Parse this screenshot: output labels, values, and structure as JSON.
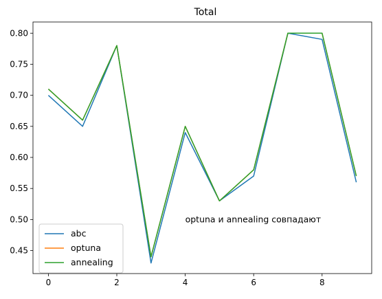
{
  "chart_data": {
    "type": "line",
    "title": "Total",
    "xlabel": "",
    "ylabel": "",
    "x": [
      0,
      1,
      2,
      3,
      4,
      5,
      6,
      7,
      8,
      9
    ],
    "xlim": [
      -0.45,
      9.45
    ],
    "ylim": [
      0.413,
      0.818
    ],
    "xticks": [
      0,
      2,
      4,
      6,
      8
    ],
    "xtick_labels": [
      "0",
      "2",
      "4",
      "6",
      "8"
    ],
    "yticks": [
      0.45,
      0.5,
      0.55,
      0.6,
      0.65,
      0.7,
      0.75,
      0.8
    ],
    "ytick_labels": [
      "0.45",
      "0.50",
      "0.55",
      "0.60",
      "0.65",
      "0.70",
      "0.75",
      "0.80"
    ],
    "series": [
      {
        "name": "abc",
        "color": "#1f77b4",
        "values": [
          0.7,
          0.65,
          0.78,
          0.43,
          0.64,
          0.53,
          0.57,
          0.8,
          0.79,
          0.56
        ]
      },
      {
        "name": "optuna",
        "color": "#ff7f0e",
        "values": [
          0.71,
          0.66,
          0.78,
          0.44,
          0.65,
          0.53,
          0.58,
          0.8,
          0.8,
          0.57
        ]
      },
      {
        "name": "annealing",
        "color": "#2ca02c",
        "values": [
          0.71,
          0.66,
          0.78,
          0.44,
          0.65,
          0.53,
          0.58,
          0.8,
          0.8,
          0.57
        ]
      }
    ],
    "annotation": {
      "text": "optuna и annealing совпадают",
      "x": 4,
      "y": 0.5
    },
    "legend": "lower-left",
    "grid": false
  }
}
